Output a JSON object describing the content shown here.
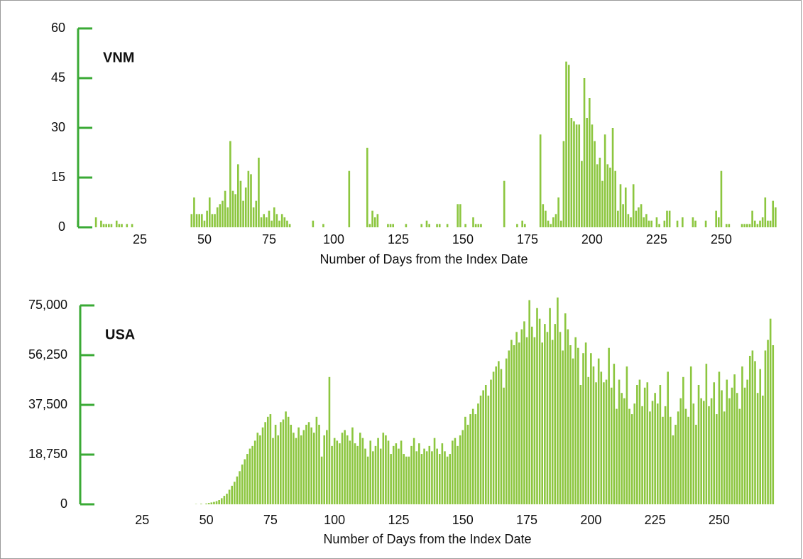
{
  "chart_data": [
    {
      "type": "bar",
      "annotation": "VNM",
      "xlabel": "Number of Days from the Index Date",
      "color": "#8cc63f",
      "axis_color": "#3aaa35",
      "xlim": [
        0,
        272
      ],
      "ylim": [
        0,
        60
      ],
      "yticks": [
        0,
        15,
        30,
        45,
        60
      ],
      "xticks": [
        25,
        50,
        75,
        100,
        125,
        150,
        175,
        200,
        225,
        250
      ],
      "x": [
        1,
        2,
        3,
        4,
        5,
        6,
        7,
        8,
        9,
        10,
        11,
        12,
        13,
        14,
        15,
        16,
        17,
        18,
        19,
        20,
        21,
        22,
        23,
        24,
        25,
        26,
        27,
        28,
        29,
        30,
        31,
        32,
        33,
        34,
        35,
        36,
        37,
        38,
        39,
        40,
        41,
        42,
        43,
        44,
        45,
        46,
        47,
        48,
        49,
        50,
        51,
        52,
        53,
        54,
        55,
        56,
        57,
        58,
        59,
        60,
        61,
        62,
        63,
        64,
        65,
        66,
        67,
        68,
        69,
        70,
        71,
        72,
        73,
        74,
        75,
        76,
        77,
        78,
        79,
        80,
        81,
        82,
        83,
        84,
        85,
        86,
        87,
        88,
        89,
        90,
        91,
        92,
        93,
        94,
        95,
        96,
        97,
        98,
        99,
        100,
        101,
        102,
        103,
        104,
        105,
        106,
        107,
        108,
        109,
        110,
        111,
        112,
        113,
        114,
        115,
        116,
        117,
        118,
        119,
        120,
        121,
        122,
        123,
        124,
        125,
        126,
        127,
        128,
        129,
        130,
        131,
        132,
        133,
        134,
        135,
        136,
        137,
        138,
        139,
        140,
        141,
        142,
        143,
        144,
        145,
        146,
        147,
        148,
        149,
        150,
        151,
        152,
        153,
        154,
        155,
        156,
        157,
        158,
        159,
        160,
        161,
        162,
        163,
        164,
        165,
        166,
        167,
        168,
        169,
        170,
        171,
        172,
        173,
        174,
        175,
        176,
        177,
        178,
        179,
        180,
        181,
        182,
        183,
        184,
        185,
        186,
        187,
        188,
        189,
        190,
        191,
        192,
        193,
        194,
        195,
        196,
        197,
        198,
        199,
        200,
        201,
        202,
        203,
        204,
        205,
        206,
        207,
        208,
        209,
        210,
        211,
        212,
        213,
        214,
        215,
        216,
        217,
        218,
        219,
        220,
        221,
        222,
        223,
        224,
        225,
        226,
        227,
        228,
        229,
        230,
        231,
        232,
        233,
        234,
        235,
        236,
        237,
        238,
        239,
        240,
        241,
        242,
        243,
        244,
        245,
        246,
        247,
        248,
        249,
        250,
        251,
        252,
        253,
        254,
        255,
        256,
        257,
        258,
        259,
        260,
        261,
        262,
        263,
        264,
        265,
        266,
        267,
        268,
        269,
        270,
        271
      ],
      "values": [
        2,
        0,
        0,
        0,
        0,
        0,
        0,
        3,
        0,
        2,
        1,
        1,
        1,
        1,
        0,
        2,
        1,
        1,
        0,
        1,
        0,
        1,
        0,
        0,
        0,
        0,
        0,
        0,
        0,
        0,
        0,
        0,
        0,
        0,
        0,
        0,
        0,
        0,
        0,
        0,
        0,
        0,
        0,
        0,
        4,
        9,
        4,
        4,
        4,
        2,
        5,
        9,
        4,
        4,
        6,
        7,
        8,
        11,
        6,
        26,
        11,
        10,
        19,
        14,
        8,
        12,
        17,
        16,
        6,
        8,
        21,
        3,
        4,
        3,
        5,
        2,
        6,
        4,
        2,
        4,
        3,
        2,
        1,
        0,
        0,
        0,
        0,
        0,
        0,
        0,
        0,
        2,
        0,
        0,
        0,
        1,
        0,
        0,
        0,
        0,
        0,
        0,
        0,
        0,
        0,
        17,
        0,
        0,
        0,
        0,
        0,
        0,
        24,
        1,
        5,
        3,
        4,
        0,
        0,
        0,
        1,
        1,
        1,
        0,
        0,
        0,
        0,
        1,
        0,
        0,
        0,
        0,
        0,
        1,
        0,
        2,
        1,
        0,
        0,
        1,
        1,
        0,
        0,
        1,
        0,
        0,
        0,
        7,
        7,
        0,
        1,
        0,
        0,
        3,
        1,
        1,
        1,
        0,
        0,
        0,
        0,
        0,
        0,
        0,
        0,
        14,
        0,
        0,
        0,
        0,
        1,
        0,
        2,
        1,
        0,
        0,
        0,
        0,
        0,
        28,
        7,
        5,
        2,
        1,
        3,
        4,
        9,
        2,
        26,
        50,
        49,
        33,
        32,
        31,
        31,
        20,
        45,
        33,
        39,
        31,
        26,
        19,
        21,
        14,
        28,
        19,
        18,
        30,
        17,
        5,
        13,
        7,
        12,
        4,
        3,
        13,
        5,
        6,
        7,
        3,
        4,
        2,
        2,
        0,
        3,
        1,
        0,
        2,
        5,
        5,
        0,
        0,
        2,
        0,
        3,
        0,
        0,
        0,
        3,
        2,
        0,
        0,
        0,
        2,
        0,
        0,
        0,
        5,
        3,
        17,
        0,
        1,
        1,
        0,
        0,
        0,
        0,
        1,
        1,
        1,
        1,
        5,
        2,
        1,
        2,
        3,
        9,
        2,
        2,
        8,
        6
      ]
    },
    {
      "type": "bar",
      "annotation": "USA",
      "xlabel": "Number of Days from the Index Date",
      "color": "#8cc63f",
      "axis_color": "#3aaa35",
      "xlim": [
        0,
        273
      ],
      "ylim": [
        0,
        75000
      ],
      "yticks": [
        0,
        {
          "value": 18750,
          "label": "18,750"
        },
        {
          "value": 37500,
          "label": "37,500"
        },
        {
          "value": 56250,
          "label": "56,250"
        },
        {
          "value": 75000,
          "label": "75,000"
        }
      ],
      "xticks": [
        25,
        50,
        75,
        100,
        125,
        150,
        175,
        200,
        225,
        250
      ],
      "x": [
        1,
        2,
        3,
        4,
        5,
        6,
        7,
        8,
        9,
        10,
        11,
        12,
        13,
        14,
        15,
        16,
        17,
        18,
        19,
        20,
        21,
        22,
        23,
        24,
        25,
        26,
        27,
        28,
        29,
        30,
        31,
        32,
        33,
        34,
        35,
        36,
        37,
        38,
        39,
        40,
        41,
        42,
        43,
        44,
        45,
        46,
        47,
        48,
        49,
        50,
        51,
        52,
        53,
        54,
        55,
        56,
        57,
        58,
        59,
        60,
        61,
        62,
        63,
        64,
        65,
        66,
        67,
        68,
        69,
        70,
        71,
        72,
        73,
        74,
        75,
        76,
        77,
        78,
        79,
        80,
        81,
        82,
        83,
        84,
        85,
        86,
        87,
        88,
        89,
        90,
        91,
        92,
        93,
        94,
        95,
        96,
        97,
        98,
        99,
        100,
        101,
        102,
        103,
        104,
        105,
        106,
        107,
        108,
        109,
        110,
        111,
        112,
        113,
        114,
        115,
        116,
        117,
        118,
        119,
        120,
        121,
        122,
        123,
        124,
        125,
        126,
        127,
        128,
        129,
        130,
        131,
        132,
        133,
        134,
        135,
        136,
        137,
        138,
        139,
        140,
        141,
        142,
        143,
        144,
        145,
        146,
        147,
        148,
        149,
        150,
        151,
        152,
        153,
        154,
        155,
        156,
        157,
        158,
        159,
        160,
        161,
        162,
        163,
        164,
        165,
        166,
        167,
        168,
        169,
        170,
        171,
        172,
        173,
        174,
        175,
        176,
        177,
        178,
        179,
        180,
        181,
        182,
        183,
        184,
        185,
        186,
        187,
        188,
        189,
        190,
        191,
        192,
        193,
        194,
        195,
        196,
        197,
        198,
        199,
        200,
        201,
        202,
        203,
        204,
        205,
        206,
        207,
        208,
        209,
        210,
        211,
        212,
        213,
        214,
        215,
        216,
        217,
        218,
        219,
        220,
        221,
        222,
        223,
        224,
        225,
        226,
        227,
        228,
        229,
        230,
        231,
        232,
        233,
        234,
        235,
        236,
        237,
        238,
        239,
        240,
        241,
        242,
        243,
        244,
        245,
        246,
        247,
        248,
        249,
        250,
        251,
        252,
        253,
        254,
        255,
        256,
        257,
        258,
        259,
        260,
        261,
        262,
        263,
        264,
        265,
        266,
        267,
        268,
        269,
        270,
        271
      ],
      "values": [
        0,
        0,
        0,
        0,
        0,
        0,
        0,
        0,
        0,
        0,
        0,
        0,
        0,
        0,
        0,
        0,
        0,
        0,
        0,
        0,
        0,
        0,
        0,
        0,
        0,
        0,
        0,
        0,
        0,
        0,
        0,
        0,
        0,
        0,
        0,
        0,
        0,
        0,
        0,
        0,
        0,
        0,
        0,
        0,
        0,
        100,
        0,
        200,
        0,
        300,
        500,
        700,
        900,
        1200,
        1600,
        2300,
        3200,
        4000,
        5500,
        7000,
        8500,
        10500,
        12500,
        15000,
        17000,
        19000,
        21000,
        22000,
        24000,
        27000,
        26000,
        29000,
        31000,
        33000,
        34000,
        25000,
        30000,
        26000,
        31000,
        32000,
        35000,
        33000,
        30000,
        27000,
        25000,
        29000,
        26000,
        28000,
        30000,
        31000,
        29000,
        27000,
        33000,
        30000,
        18000,
        26000,
        28000,
        48000,
        22000,
        25000,
        24000,
        23000,
        27000,
        28000,
        26000,
        24000,
        29000,
        23000,
        22000,
        27000,
        25000,
        21000,
        18000,
        24000,
        20000,
        22000,
        25000,
        21000,
        27000,
        26000,
        24000,
        19000,
        22000,
        23000,
        21000,
        24000,
        19000,
        18000,
        18000,
        22000,
        25000,
        20000,
        23000,
        19000,
        21000,
        20000,
        22000,
        20000,
        25000,
        21000,
        19000,
        23000,
        20000,
        18000,
        19000,
        24000,
        25000,
        22000,
        26000,
        28000,
        33000,
        30000,
        34000,
        36000,
        34000,
        38000,
        41000,
        43000,
        45000,
        41000,
        47000,
        50000,
        52000,
        54000,
        51000,
        44000,
        55000,
        58000,
        62000,
        60000,
        65000,
        61000,
        66000,
        69000,
        63000,
        77000,
        67000,
        63000,
        74000,
        70000,
        61000,
        68000,
        65000,
        74000,
        62000,
        68000,
        78000,
        65000,
        58000,
        72000,
        66000,
        60000,
        55000,
        63000,
        59000,
        45000,
        57000,
        61000,
        48000,
        57000,
        52000,
        46000,
        55000,
        50000,
        46000,
        47000,
        59000,
        44000,
        53000,
        36000,
        47000,
        42000,
        40000,
        52000,
        36000,
        34000,
        38000,
        45000,
        47000,
        37000,
        44000,
        46000,
        35000,
        39000,
        42000,
        38000,
        45000,
        33000,
        37000,
        50000,
        33000,
        26000,
        30000,
        35000,
        40000,
        48000,
        36000,
        33000,
        52000,
        38000,
        30000,
        45000,
        40000,
        39000,
        53000,
        37000,
        40000,
        46000,
        34000,
        50000,
        43000,
        35000,
        47000,
        40000,
        44000,
        49000,
        42000,
        36000,
        52000,
        44000,
        47000,
        56000,
        58000,
        54000,
        42000,
        51000,
        41000,
        58000,
        62000,
        70000,
        60000
      ]
    }
  ]
}
